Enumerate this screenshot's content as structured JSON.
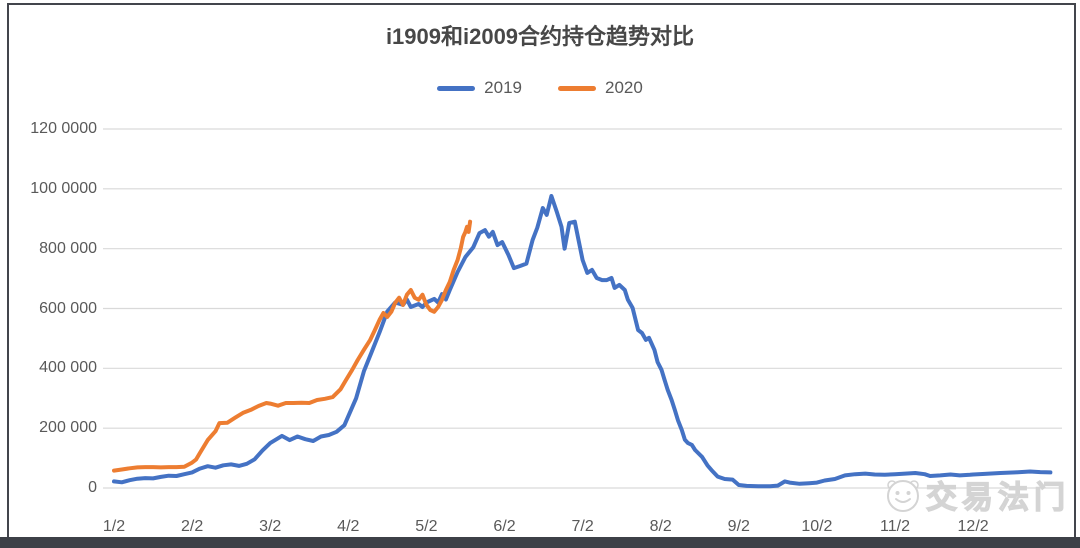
{
  "title": "i1909和i2009合约持仓趋势对比",
  "legend": [
    {
      "label": "2019",
      "color": "#4472C4"
    },
    {
      "label": "2020",
      "color": "#ED7D31"
    }
  ],
  "watermark": {
    "text": "交易法门",
    "logo": "smiley-face-logo"
  },
  "colors": {
    "series_2019": "#4472C4",
    "series_2020": "#ED7D31",
    "gridline": "#d9d9d9",
    "axis_text": "#595959",
    "title_text": "#474747",
    "bottom_bar": "#3d4047"
  },
  "chart_data": {
    "type": "line",
    "title": "i1909和i2009合约持仓趋势对比",
    "xlabel": "",
    "ylabel": "",
    "grid": true,
    "legend_position": "top",
    "ylim": [
      0,
      1200000
    ],
    "y_tick_values": [
      1200000,
      1000000,
      800000,
      600000,
      400000,
      200000,
      0
    ],
    "y_tick_labels": [
      "120 0000",
      "100 0000",
      "800 000",
      "600 000",
      "400 000",
      "200 000",
      "0"
    ],
    "x_tick_labels": [
      "1/2",
      "2/2",
      "3/2",
      "4/2",
      "5/2",
      "6/2",
      "7/2",
      "8/2",
      "9/2",
      "10/2",
      "11/2",
      "12/2"
    ],
    "x_tick_positions": [
      0,
      1,
      2,
      3,
      4,
      5,
      6,
      7,
      8,
      9,
      10,
      11
    ],
    "series": [
      {
        "name": "2019",
        "color": "#4472C4",
        "points": [
          [
            0,
            22000
          ],
          [
            0.1,
            19000
          ],
          [
            0.2,
            26000
          ],
          [
            0.3,
            31000
          ],
          [
            0.4,
            33000
          ],
          [
            0.5,
            32000
          ],
          [
            0.6,
            37000
          ],
          [
            0.7,
            41000
          ],
          [
            0.8,
            40000
          ],
          [
            0.9,
            46000
          ],
          [
            1,
            52000
          ],
          [
            1.1,
            65000
          ],
          [
            1.2,
            73000
          ],
          [
            1.3,
            68000
          ],
          [
            1.4,
            76000
          ],
          [
            1.5,
            79000
          ],
          [
            1.6,
            74000
          ],
          [
            1.7,
            81000
          ],
          [
            1.8,
            96000
          ],
          [
            1.9,
            125000
          ],
          [
            2,
            150000
          ],
          [
            2.1,
            166000
          ],
          [
            2.15,
            174000
          ],
          [
            2.25,
            160000
          ],
          [
            2.35,
            172000
          ],
          [
            2.45,
            163000
          ],
          [
            2.55,
            157000
          ],
          [
            2.65,
            172000
          ],
          [
            2.75,
            177000
          ],
          [
            2.85,
            188000
          ],
          [
            2.95,
            210000
          ],
          [
            3,
            240000
          ],
          [
            3.1,
            300000
          ],
          [
            3.2,
            390000
          ],
          [
            3.3,
            455000
          ],
          [
            3.4,
            520000
          ],
          [
            3.5,
            590000
          ],
          [
            3.6,
            620000
          ],
          [
            3.7,
            612000
          ],
          [
            3.75,
            630000
          ],
          [
            3.8,
            605000
          ],
          [
            3.9,
            615000
          ],
          [
            3.95,
            605000
          ],
          [
            4,
            620000
          ],
          [
            4.1,
            632000
          ],
          [
            4.15,
            620000
          ],
          [
            4.2,
            648000
          ],
          [
            4.25,
            630000
          ],
          [
            4.3,
            662000
          ],
          [
            4.4,
            722000
          ],
          [
            4.5,
            772000
          ],
          [
            4.6,
            805000
          ],
          [
            4.68,
            852000
          ],
          [
            4.75,
            862000
          ],
          [
            4.8,
            840000
          ],
          [
            4.85,
            856000
          ],
          [
            4.91,
            812000
          ],
          [
            4.97,
            822000
          ],
          [
            5.05,
            779000
          ],
          [
            5.12,
            735000
          ],
          [
            5.2,
            742000
          ],
          [
            5.28,
            750000
          ],
          [
            5.36,
            829000
          ],
          [
            5.42,
            870000
          ],
          [
            5.49,
            936000
          ],
          [
            5.54,
            913000
          ],
          [
            5.6,
            976000
          ],
          [
            5.67,
            923000
          ],
          [
            5.73,
            873000
          ],
          [
            5.77,
            800000
          ],
          [
            5.83,
            886000
          ],
          [
            5.9,
            890000
          ],
          [
            6,
            762000
          ],
          [
            6.06,
            719000
          ],
          [
            6.12,
            729000
          ],
          [
            6.18,
            702000
          ],
          [
            6.25,
            695000
          ],
          [
            6.31,
            695000
          ],
          [
            6.37,
            702000
          ],
          [
            6.41,
            669000
          ],
          [
            6.47,
            679000
          ],
          [
            6.54,
            662000
          ],
          [
            6.58,
            629000
          ],
          [
            6.64,
            602000
          ],
          [
            6.71,
            528000
          ],
          [
            6.76,
            518000
          ],
          [
            6.81,
            495000
          ],
          [
            6.85,
            502000
          ],
          [
            6.88,
            485000
          ],
          [
            6.92,
            461000
          ],
          [
            6.96,
            421000
          ],
          [
            7.01,
            395000
          ],
          [
            7.05,
            361000
          ],
          [
            7.09,
            328000
          ],
          [
            7.14,
            294000
          ],
          [
            7.18,
            261000
          ],
          [
            7.22,
            227000
          ],
          [
            7.27,
            194000
          ],
          [
            7.31,
            161000
          ],
          [
            7.35,
            150000
          ],
          [
            7.4,
            144000
          ],
          [
            7.44,
            127000
          ],
          [
            7.53,
            104000
          ],
          [
            7.6,
            75000
          ],
          [
            7.65,
            60000
          ],
          [
            7.73,
            38000
          ],
          [
            7.82,
            30000
          ],
          [
            7.92,
            28000
          ],
          [
            8,
            10000
          ],
          [
            8.1,
            7000
          ],
          [
            8.25,
            6000
          ],
          [
            8.4,
            6000
          ],
          [
            8.5,
            8000
          ],
          [
            8.59,
            22000
          ],
          [
            8.65,
            18000
          ],
          [
            8.78,
            14000
          ],
          [
            8.9,
            16000
          ],
          [
            9,
            18000
          ],
          [
            9.1,
            25000
          ],
          [
            9.23,
            30000
          ],
          [
            9.36,
            42000
          ],
          [
            9.49,
            46000
          ],
          [
            9.62,
            48000
          ],
          [
            9.74,
            45000
          ],
          [
            9.87,
            44000
          ],
          [
            10,
            46000
          ],
          [
            10.13,
            48000
          ],
          [
            10.26,
            50000
          ],
          [
            10.38,
            46000
          ],
          [
            10.45,
            40000
          ],
          [
            10.58,
            42000
          ],
          [
            10.71,
            45000
          ],
          [
            10.83,
            42000
          ],
          [
            10.96,
            44000
          ],
          [
            11,
            45000
          ],
          [
            11.15,
            47000
          ],
          [
            11.35,
            50000
          ],
          [
            11.54,
            52000
          ],
          [
            11.73,
            55000
          ],
          [
            11.86,
            53000
          ],
          [
            11.99,
            52000
          ]
        ]
      },
      {
        "name": "2020",
        "color": "#ED7D31",
        "points": [
          [
            0,
            58000
          ],
          [
            0.1,
            62000
          ],
          [
            0.2,
            66000
          ],
          [
            0.3,
            69000
          ],
          [
            0.4,
            70000
          ],
          [
            0.5,
            70000
          ],
          [
            0.6,
            69000
          ],
          [
            0.7,
            70000
          ],
          [
            0.8,
            70000
          ],
          [
            0.9,
            71000
          ],
          [
            1,
            85000
          ],
          [
            1.05,
            95000
          ],
          [
            1.1,
            117000
          ],
          [
            1.2,
            160000
          ],
          [
            1.3,
            190000
          ],
          [
            1.35,
            217000
          ],
          [
            1.45,
            218000
          ],
          [
            1.55,
            235000
          ],
          [
            1.65,
            251000
          ],
          [
            1.75,
            261000
          ],
          [
            1.85,
            274000
          ],
          [
            1.95,
            284000
          ],
          [
            2,
            282000
          ],
          [
            2.1,
            275000
          ],
          [
            2.2,
            284000
          ],
          [
            2.3,
            284000
          ],
          [
            2.4,
            285000
          ],
          [
            2.5,
            284000
          ],
          [
            2.6,
            294000
          ],
          [
            2.7,
            298000
          ],
          [
            2.8,
            304000
          ],
          [
            2.9,
            330000
          ],
          [
            2.97,
            361000
          ],
          [
            3.05,
            395000
          ],
          [
            3.12,
            428000
          ],
          [
            3.2,
            462000
          ],
          [
            3.28,
            495000
          ],
          [
            3.34,
            528000
          ],
          [
            3.4,
            562000
          ],
          [
            3.45,
            585000
          ],
          [
            3.5,
            572000
          ],
          [
            3.55,
            589000
          ],
          [
            3.6,
            619000
          ],
          [
            3.65,
            636000
          ],
          [
            3.7,
            612000
          ],
          [
            3.75,
            646000
          ],
          [
            3.8,
            662000
          ],
          [
            3.85,
            636000
          ],
          [
            3.9,
            629000
          ],
          [
            3.95,
            646000
          ],
          [
            4,
            612000
          ],
          [
            4.05,
            595000
          ],
          [
            4.1,
            589000
          ],
          [
            4.15,
            605000
          ],
          [
            4.2,
            629000
          ],
          [
            4.25,
            662000
          ],
          [
            4.3,
            689000
          ],
          [
            4.35,
            729000
          ],
          [
            4.4,
            762000
          ],
          [
            4.44,
            802000
          ],
          [
            4.47,
            839000
          ],
          [
            4.5,
            856000
          ],
          [
            4.52,
            873000
          ],
          [
            4.54,
            856000
          ],
          [
            4.56,
            890000
          ]
        ]
      }
    ]
  }
}
